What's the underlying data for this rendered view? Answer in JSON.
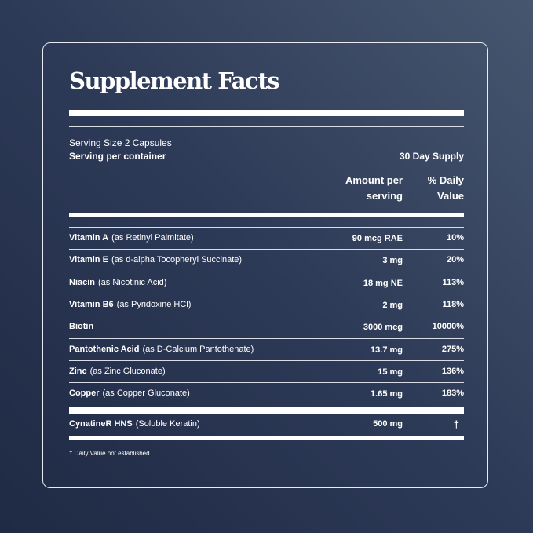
{
  "title": "Supplement Facts",
  "serving_size": "Serving Size 2 Capsules",
  "serving_per_container_label": "Serving per container",
  "serving_per_container_value": "30 Day Supply",
  "headers": {
    "amount_line1": "Amount per",
    "amount_line2": "serving",
    "dv_line1": "% Daily",
    "dv_line2": "Value"
  },
  "nutrients": [
    {
      "name": "Vitamin A",
      "source": "(as Retinyl Palmitate)",
      "amount": "90 mcg RAE",
      "dv": "10%"
    },
    {
      "name": "Vitamin E",
      "source": "(as d-alpha Tocopheryl Succinate)",
      "amount": "3 mg",
      "dv": "20%"
    },
    {
      "name": "Niacin",
      "source": "(as Nicotinic Acid)",
      "amount": "18 mg NE",
      "dv": "113%"
    },
    {
      "name": "Vitamin B6",
      "source": "(as Pyridoxine HCl)",
      "amount": "2 mg",
      "dv": "118%"
    },
    {
      "name": "Biotin",
      "source": "",
      "amount": "3000 mcg",
      "dv": "10000%"
    },
    {
      "name": "Pantothenic Acid",
      "source": "(as D-Calcium Pantothenate)",
      "amount": "13.7 mg",
      "dv": "275%"
    },
    {
      "name": "Zinc",
      "source": "(as Zinc Gluconate)",
      "amount": "15 mg",
      "dv": "136%"
    },
    {
      "name": "Copper",
      "source": "(as Copper Gluconate)",
      "amount": "1.65 mg",
      "dv": "183%"
    }
  ],
  "other": {
    "name": "CynatineR HNS",
    "source": "(Soluble Keratin)",
    "amount": "500 mg",
    "dv": "†"
  },
  "footnote": "† Daily Value not established."
}
